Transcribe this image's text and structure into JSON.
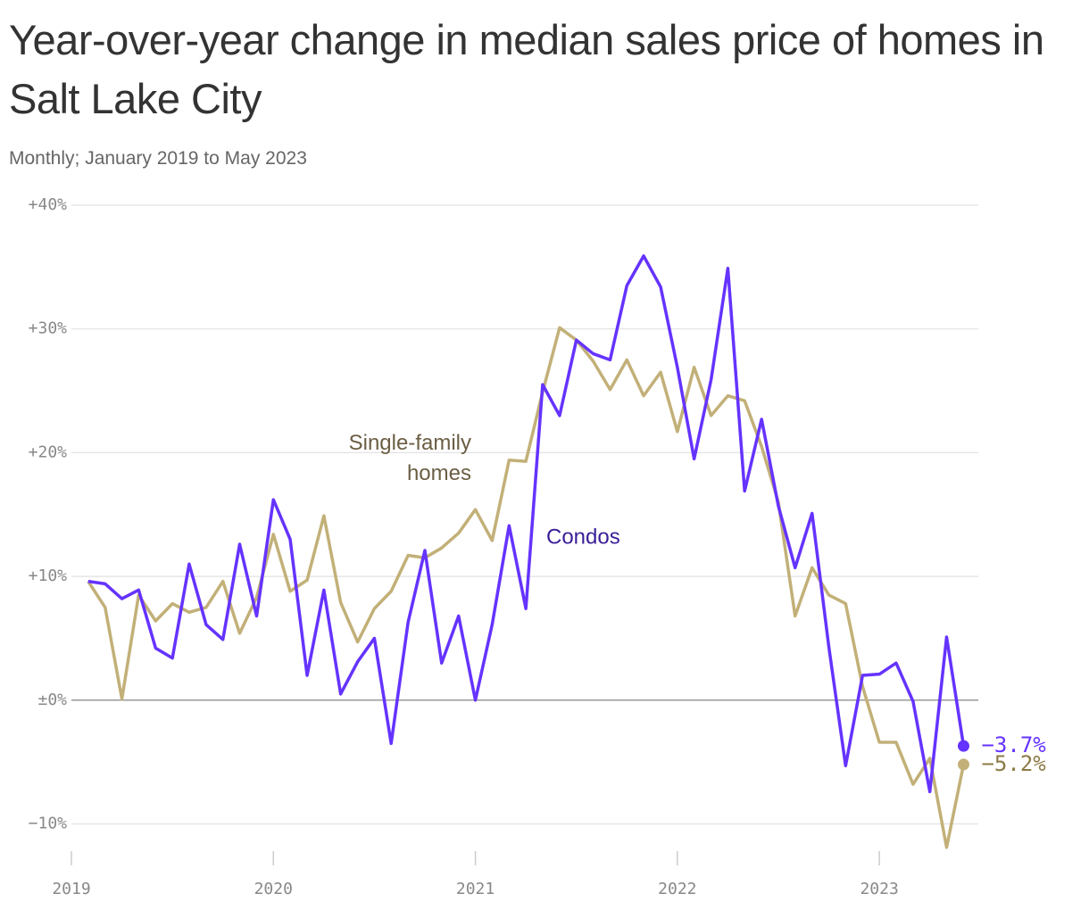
{
  "chart_data": {
    "type": "line",
    "title": "Year-over-year change in median sales price of homes in Salt Lake City",
    "subtitle": "Monthly; January 2019 to May 2023",
    "x": [
      2019.083,
      2019.167,
      2019.25,
      2019.333,
      2019.417,
      2019.5,
      2019.583,
      2019.667,
      2019.75,
      2019.833,
      2019.917,
      2020,
      2020.083,
      2020.167,
      2020.25,
      2020.333,
      2020.417,
      2020.5,
      2020.583,
      2020.667,
      2020.75,
      2020.833,
      2020.917,
      2021,
      2021.083,
      2021.167,
      2021.25,
      2021.333,
      2021.417,
      2021.5,
      2021.583,
      2021.667,
      2021.75,
      2021.833,
      2021.917,
      2022,
      2022.083,
      2022.167,
      2022.25,
      2022.333,
      2022.417,
      2022.5,
      2022.583,
      2022.667,
      2022.75,
      2022.833,
      2022.917,
      2023,
      2023.083,
      2023.167,
      2023.25,
      2023.333,
      2023.417
    ],
    "series": [
      {
        "name": "Condos",
        "color": "#6533ff",
        "values": [
          9.6,
          9.4,
          8.2,
          8.9,
          4.2,
          3.4,
          11.0,
          6.1,
          4.9,
          12.6,
          6.8,
          16.2,
          13.0,
          2.0,
          8.9,
          0.5,
          3.1,
          5.0,
          -3.5,
          6.3,
          12.1,
          3.0,
          6.8,
          0,
          6.1,
          14.1,
          7.4,
          25.5,
          23.0,
          29.1,
          28.0,
          27.5,
          33.5,
          35.9,
          33.4,
          26.9,
          19.5,
          25.9,
          34.9,
          16.9,
          22.7,
          15.7,
          10.7,
          15.1,
          4.3,
          -5.3,
          2.0,
          2.1,
          3.0,
          -0.1,
          -7.4,
          5.1,
          -3.7
        ],
        "value_labels": [
          null,
          null,
          null,
          null,
          null,
          null,
          null,
          null,
          null,
          null,
          null,
          null,
          null,
          null,
          null,
          null,
          null,
          null,
          null,
          null,
          null,
          null,
          null,
          null,
          null,
          null,
          null,
          null,
          null,
          null,
          null,
          null,
          null,
          null,
          null,
          null,
          null,
          null,
          null,
          null,
          null,
          null,
          null,
          null,
          null,
          null,
          null,
          null,
          null,
          null,
          null,
          null,
          "−3.7%"
        ]
      },
      {
        "name": "Single-family homes",
        "color": "#c2b078",
        "values": [
          9.6,
          7.5,
          0.1,
          8.5,
          6.4,
          7.8,
          7.1,
          7.5,
          9.6,
          5.4,
          8.3,
          13.4,
          8.8,
          9.7,
          14.9,
          7.9,
          4.7,
          7.4,
          8.8,
          11.7,
          11.5,
          12.3,
          13.5,
          15.4,
          12.9,
          19.4,
          19.3,
          24.9,
          30.1,
          29.1,
          27.4,
          25.1,
          27.5,
          24.6,
          26.5,
          21.7,
          26.9,
          23.0,
          24.6,
          24.2,
          20.5,
          16.0,
          6.8,
          10.7,
          8.5,
          7.8,
          1.1,
          -3.4,
          -3.4,
          -6.8,
          -4.7,
          -11.9,
          -5.2
        ],
        "value_labels": [
          null,
          null,
          null,
          null,
          null,
          null,
          null,
          null,
          null,
          null,
          null,
          null,
          null,
          null,
          null,
          null,
          null,
          null,
          null,
          null,
          null,
          null,
          null,
          null,
          null,
          null,
          null,
          null,
          null,
          null,
          null,
          null,
          null,
          null,
          null,
          null,
          null,
          null,
          null,
          null,
          null,
          null,
          null,
          null,
          null,
          null,
          null,
          null,
          null,
          null,
          null,
          null,
          "−5.2%"
        ]
      }
    ],
    "xlim": [
      2019,
      2023.49
    ],
    "xticks": [
      2019,
      2020,
      2021,
      2022,
      2023
    ],
    "ylim": [
      -12.2,
      40
    ],
    "yticks": [
      {
        "value": -10,
        "label": "−10%"
      },
      {
        "value": 0,
        "label": "±0%"
      },
      {
        "value": 10,
        "label": "+10%"
      },
      {
        "value": 20,
        "label": "+20%"
      },
      {
        "value": 30,
        "label": "+30%"
      },
      {
        "value": 40,
        "label": "+40%"
      }
    ],
    "grid": true
  }
}
